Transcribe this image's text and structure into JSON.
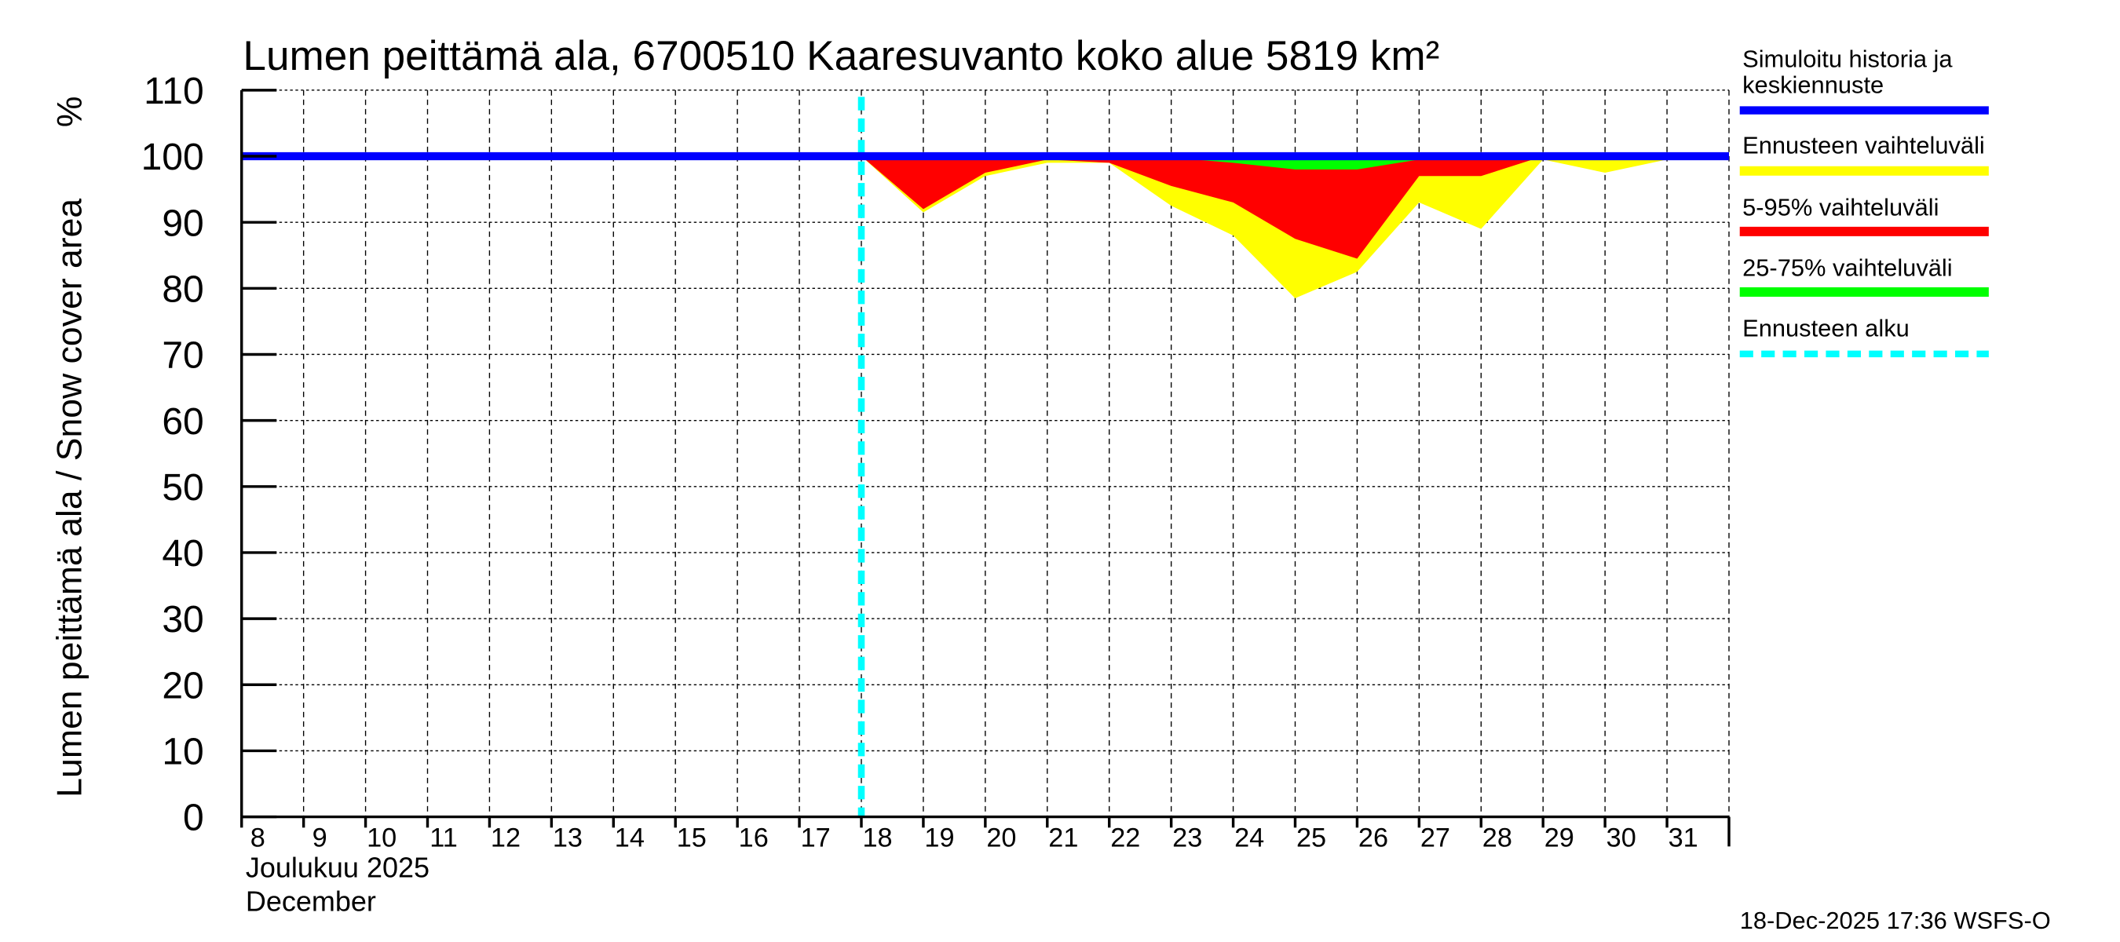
{
  "chart_data": {
    "type": "area",
    "title": "Lumen peittämä ala, 6700510 Kaaresuvanto koko alue 5819 km²",
    "ylabel": "Lumen peittämä ala / Snow cover area",
    "yunit": "%",
    "ylim": [
      0,
      110
    ],
    "yticks": [
      0,
      10,
      20,
      30,
      40,
      50,
      60,
      70,
      80,
      90,
      100,
      110
    ],
    "xlim": [
      8,
      32
    ],
    "xticks": [
      8,
      9,
      10,
      11,
      12,
      13,
      14,
      15,
      16,
      17,
      18,
      19,
      20,
      21,
      22,
      23,
      24,
      25,
      26,
      27,
      28,
      29,
      30,
      31
    ],
    "xlabel_fi": "Joulukuu  2025",
    "xlabel_en": "December",
    "grid": true,
    "forecast_start_day": 18,
    "forecast_days": [
      18,
      19,
      20,
      21,
      22,
      23,
      24,
      25,
      26,
      27,
      28,
      29,
      30,
      31,
      32
    ],
    "series": [
      {
        "name": "Simuloitu historia ja keskiennuste",
        "color": "#0000ff",
        "x": [
          8,
          32
        ],
        "values": [
          100,
          100
        ]
      },
      {
        "name": "Ennusteen vaihteluväli",
        "color": "#ffff00",
        "lower": [
          100,
          91.5,
          97,
          99,
          99,
          92.5,
          88,
          78.5,
          82.5,
          93,
          89,
          99.5,
          97.5,
          99.5,
          100
        ]
      },
      {
        "name": "5-95% vaihteluväli",
        "color": "#ff0000",
        "lower": [
          100,
          92,
          97.5,
          99.5,
          99,
          95.5,
          93,
          87.5,
          84.5,
          97,
          97,
          100,
          100,
          100,
          100
        ]
      },
      {
        "name": "25-75% vaihteluväli",
        "color": "#00ff00",
        "lower": [
          100,
          100,
          100,
          100,
          100,
          99.8,
          99,
          98,
          98,
          99.5,
          100,
          100,
          100,
          100,
          100
        ]
      },
      {
        "name": "Ennusteen alku",
        "color": "#00ffff"
      }
    ],
    "legend": {
      "placement": "right",
      "items": [
        "Simuloitu historia ja",
        "keskiennuste",
        "Ennusteen vaihteluväli",
        "5-95% vaihteluväli",
        "25-75% vaihteluväli",
        "Ennusteen alku"
      ]
    },
    "footer": "18-Dec-2025 17:36 WSFS-O"
  }
}
